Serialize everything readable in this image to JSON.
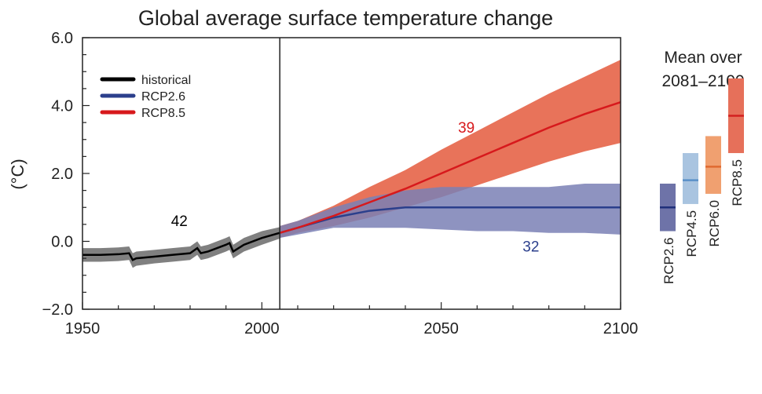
{
  "chart_data": {
    "type": "line",
    "title": "Global average surface temperature change",
    "ylabel": "(°C)",
    "xlabel": "",
    "xlim": [
      1950,
      2100
    ],
    "ylim": [
      -2.0,
      6.0
    ],
    "xticks": [
      "1950",
      "2000",
      "2050",
      "2100"
    ],
    "yticks": [
      "−2.0",
      "0.0",
      "2.0",
      "4.0",
      "6.0"
    ],
    "grid": false,
    "legend_placement": "top-left",
    "divider_year": 2005,
    "series": [
      {
        "name": "historical",
        "color": "#000000",
        "band_color": "#808080",
        "x": [
          1950,
          1955,
          1960,
          1963,
          1964,
          1965,
          1970,
          1975,
          1980,
          1982,
          1983,
          1985,
          1990,
          1991,
          1992,
          1995,
          2000,
          2005
        ],
        "y": [
          -0.4,
          -0.4,
          -0.38,
          -0.35,
          -0.55,
          -0.5,
          -0.45,
          -0.4,
          -0.35,
          -0.2,
          -0.35,
          -0.3,
          -0.1,
          -0.05,
          -0.3,
          -0.1,
          0.1,
          0.25
        ],
        "lower": [
          -0.6,
          -0.6,
          -0.58,
          -0.55,
          -0.78,
          -0.72,
          -0.65,
          -0.6,
          -0.55,
          -0.4,
          -0.55,
          -0.5,
          -0.3,
          -0.25,
          -0.5,
          -0.3,
          -0.1,
          0.08
        ],
        "upper": [
          -0.2,
          -0.2,
          -0.18,
          -0.15,
          -0.35,
          -0.3,
          -0.25,
          -0.2,
          -0.15,
          0.0,
          -0.15,
          -0.1,
          0.1,
          0.15,
          -0.1,
          0.1,
          0.3,
          0.42
        ],
        "models": "42",
        "label_pos": [
          1977,
          0.45
        ]
      },
      {
        "name": "RCP2.6",
        "color": "#2b3f8c",
        "band_color": "#7a80b5",
        "x": [
          2005,
          2010,
          2020,
          2030,
          2040,
          2050,
          2060,
          2070,
          2080,
          2090,
          2100
        ],
        "y": [
          0.25,
          0.4,
          0.7,
          0.9,
          1.0,
          1.0,
          1.0,
          1.0,
          1.0,
          1.0,
          1.0
        ],
        "lower": [
          0.1,
          0.2,
          0.4,
          0.4,
          0.4,
          0.35,
          0.3,
          0.3,
          0.25,
          0.25,
          0.2
        ],
        "upper": [
          0.45,
          0.6,
          1.0,
          1.3,
          1.5,
          1.6,
          1.6,
          1.6,
          1.6,
          1.7,
          1.7
        ],
        "models": "32",
        "label_pos": [
          2075,
          -0.3
        ]
      },
      {
        "name": "RCP8.5",
        "color": "#d7191c",
        "band_color": "#e8735a",
        "x": [
          2005,
          2010,
          2020,
          2030,
          2040,
          2050,
          2060,
          2070,
          2080,
          2090,
          2100
        ],
        "y": [
          0.25,
          0.4,
          0.75,
          1.15,
          1.55,
          2.0,
          2.45,
          2.9,
          3.35,
          3.75,
          4.1
        ],
        "lower": [
          0.1,
          0.25,
          0.45,
          0.7,
          1.0,
          1.3,
          1.65,
          2.0,
          2.35,
          2.65,
          2.9
        ],
        "upper": [
          0.45,
          0.6,
          1.05,
          1.6,
          2.1,
          2.7,
          3.25,
          3.8,
          4.35,
          4.85,
          5.35
        ],
        "models": "39",
        "label_pos": [
          2057,
          3.2
        ]
      }
    ],
    "mean_panel": {
      "title_line1": "Mean over",
      "title_line2": "2081–2100",
      "bars": [
        {
          "name": "RCP2.6",
          "mean": 1.0,
          "low": 0.3,
          "high": 1.7,
          "color": "#6e73a8",
          "line_color": "#1f2f7a"
        },
        {
          "name": "RCP4.5",
          "mean": 1.8,
          "low": 1.1,
          "high": 2.6,
          "color": "#a9c4e0",
          "line_color": "#5a90c8"
        },
        {
          "name": "RCP6.0",
          "mean": 2.2,
          "low": 1.4,
          "high": 3.1,
          "color": "#f0a070",
          "line_color": "#e06a30"
        },
        {
          "name": "RCP8.5",
          "mean": 3.7,
          "low": 2.6,
          "high": 4.8,
          "color": "#e6705a",
          "line_color": "#d42020"
        }
      ]
    }
  }
}
